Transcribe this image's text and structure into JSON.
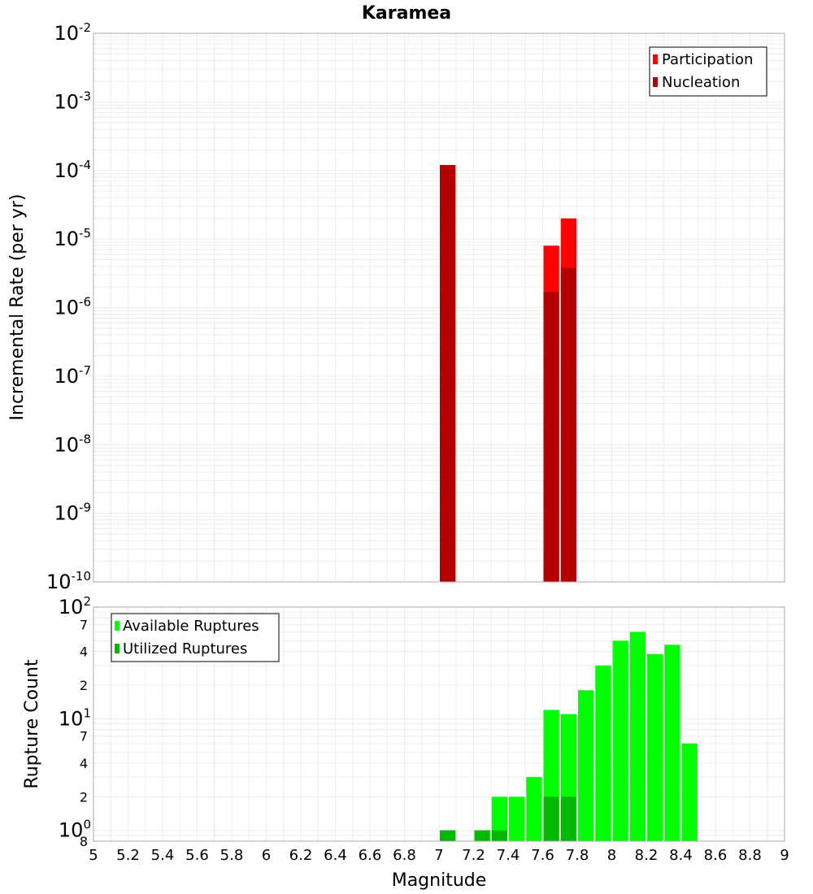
{
  "chart_data": [
    {
      "type": "bar",
      "title": "Karamea",
      "xlabel": "",
      "ylabel": "Incremental Rate (per yr)",
      "yscale": "log",
      "xlim": [
        5,
        9
      ],
      "ylim": [
        1e-10,
        0.01
      ],
      "bin_width": 0.1,
      "legend": {
        "position": "top-right"
      },
      "series": [
        {
          "name": "Participation",
          "color": "#ff0000",
          "x": [
            7.05,
            7.65,
            7.75
          ],
          "values": [
            0.00012,
            8e-06,
            2e-05
          ]
        },
        {
          "name": "Nucleation",
          "color": "#b30000",
          "x": [
            7.05,
            7.65,
            7.75
          ],
          "values": [
            0.00012,
            1.7e-06,
            3.8e-06
          ]
        }
      ]
    },
    {
      "type": "bar",
      "title": "",
      "xlabel": "Magnitude",
      "ylabel": "Rupture Count",
      "yscale": "log",
      "xlim": [
        5,
        9
      ],
      "ylim": [
        0.8,
        100
      ],
      "bin_width": 0.1,
      "legend": {
        "position": "top-left"
      },
      "series": [
        {
          "name": "Available Ruptures",
          "color": "#00ff00",
          "x": [
            7.05,
            7.25,
            7.35,
            7.45,
            7.55,
            7.65,
            7.75,
            7.85,
            7.95,
            8.05,
            8.15,
            8.25,
            8.35,
            8.45
          ],
          "values": [
            1,
            1,
            2,
            2,
            3,
            12,
            11,
            18,
            30,
            50,
            60,
            38,
            46,
            6
          ]
        },
        {
          "name": "Utilized Ruptures",
          "color": "#00b800",
          "x": [
            7.05,
            7.25,
            7.35,
            7.65,
            7.75
          ],
          "values": [
            1,
            1,
            1,
            2,
            2
          ]
        }
      ]
    }
  ],
  "axes": {
    "x_ticks": [
      "5",
      "5.2",
      "5.4",
      "5.6",
      "5.8",
      "6",
      "6.2",
      "6.4",
      "6.6",
      "6.8",
      "7",
      "7.2",
      "7.4",
      "7.6",
      "7.8",
      "8",
      "8.2",
      "8.4",
      "8.6",
      "8.8",
      "9"
    ],
    "top_y_ticks": [
      {
        "base": "10",
        "exp": "-2"
      },
      {
        "base": "10",
        "exp": "-3"
      },
      {
        "base": "10",
        "exp": "-4"
      },
      {
        "base": "10",
        "exp": "-5"
      },
      {
        "base": "10",
        "exp": "-6"
      },
      {
        "base": "10",
        "exp": "-7"
      },
      {
        "base": "10",
        "exp": "-8"
      },
      {
        "base": "10",
        "exp": "-9"
      },
      {
        "base": "10",
        "exp": "-10"
      }
    ],
    "bottom_y_major": [
      {
        "base": "10",
        "exp": "2"
      },
      {
        "base": "10",
        "exp": "1"
      },
      {
        "base": "10",
        "exp": "0"
      }
    ],
    "bottom_y_minor": [
      "7",
      "4",
      "2",
      "7",
      "4",
      "2",
      "8"
    ]
  }
}
